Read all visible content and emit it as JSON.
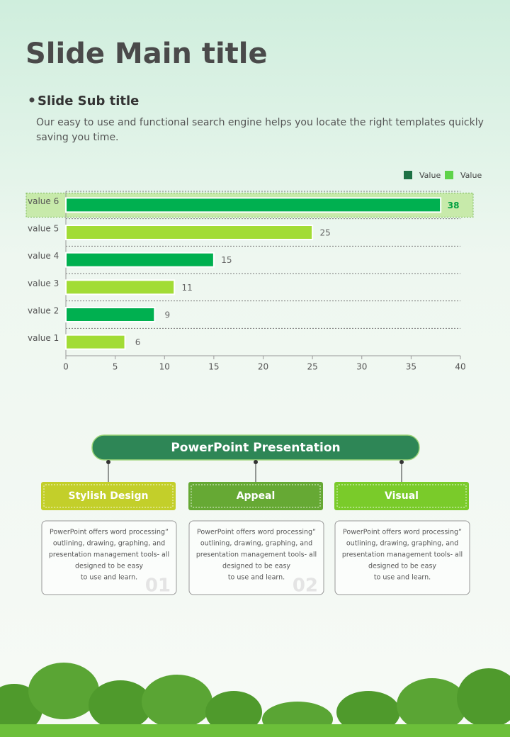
{
  "header": {
    "title": "Slide Main title",
    "subtitle": "Slide Sub title",
    "description": [
      "Our easy to use and functional search engine helps you locate the right  templates quickly",
      "saving you time."
    ]
  },
  "chart_data": {
    "type": "hbar",
    "categories": [
      "value 1",
      "value 2",
      "value 3",
      "value 4",
      "value 5",
      "value 6"
    ],
    "values": [
      6,
      9,
      11,
      15,
      25,
      38
    ],
    "colors": [
      "#a2dc35",
      "#00b050",
      "#a2dc35",
      "#00b050",
      "#a2dc35",
      "#00b050"
    ],
    "legend": [
      {
        "name": "Value",
        "color": "#1e7145"
      },
      {
        "name": "Value",
        "color": "#5fd34a"
      }
    ],
    "highlight": 5,
    "xlim": [
      0,
      40
    ],
    "xticks": [
      0,
      5,
      10,
      15,
      20,
      25,
      30,
      35,
      40
    ]
  },
  "diagram": {
    "header": "PowerPoint Presentation",
    "items": [
      {
        "title": "Stylish Design",
        "color": "#c3cf2a",
        "text_lines": [
          "PowerPoint offers word processing”",
          "outlining, drawing, graphing, and",
          "presentation management tools- all",
          "designed to be easy",
          "to use and learn."
        ],
        "number": "01"
      },
      {
        "title": "Appeal",
        "color": "#66a934",
        "text_lines": [
          "PowerPoint offers word processing”",
          "outlining, drawing, graphing, and",
          "presentation management tools- all",
          "designed to be easy",
          "to use and learn."
        ],
        "number": "02"
      },
      {
        "title": "Visual",
        "color": "#7acb2a",
        "text_lines": [
          "PowerPoint offers word processing”",
          "outlining, drawing, graphing, and",
          "presentation management tools- all",
          "designed to be easy",
          "to use and learn."
        ]
      }
    ]
  }
}
